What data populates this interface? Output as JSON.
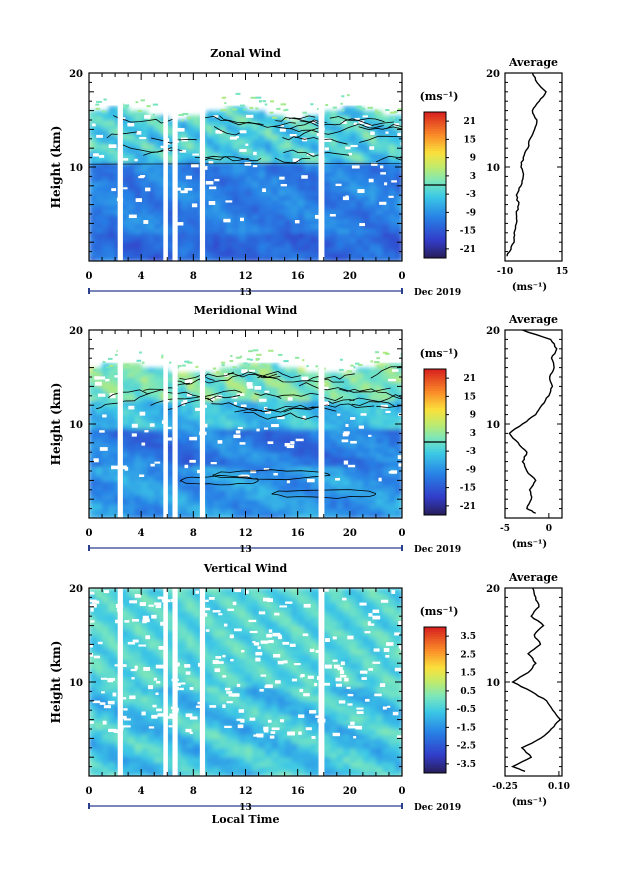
{
  "chart_data": [
    {
      "type": "heatmap",
      "title": "Zonal Wind",
      "ylabel": "Height (km)",
      "xlabel": "",
      "x_ticks": [
        "0",
        "4",
        "8",
        "12",
        "16",
        "20",
        "0"
      ],
      "date_axis": {
        "day": "13",
        "month_label": "Dec 2019"
      },
      "y_ticks": [
        "10",
        "20"
      ],
      "ylim": [
        0,
        20
      ],
      "xlim": [
        0,
        24
      ],
      "colorbar": {
        "unit": "(ms⁻¹)",
        "ticks": [
          "21",
          "15",
          "9",
          "3",
          "-3",
          "-9",
          "-15",
          "-21"
        ],
        "range": [
          -24,
          24
        ]
      },
      "profile": {
        "title": "Average",
        "xlabel": "(ms⁻¹)",
        "x_ticks": [
          "-10",
          "15"
        ],
        "y_ticks": [
          "10",
          "20"
        ],
        "xlim": [
          -10,
          15
        ],
        "heights": [
          0.5,
          1,
          2,
          3,
          4,
          5,
          6,
          7,
          8,
          9,
          10,
          11,
          12,
          13,
          14,
          15,
          16,
          17,
          18,
          19,
          20
        ],
        "values": [
          -9,
          -8,
          -6,
          -6,
          -5,
          -5,
          -4,
          -5,
          -3,
          -2,
          -3,
          -2,
          0,
          1,
          3,
          4,
          2,
          5,
          8,
          4,
          2
        ]
      }
    },
    {
      "type": "heatmap",
      "title": "Meridional Wind",
      "ylabel": "Height (km)",
      "xlabel": "",
      "x_ticks": [
        "0",
        "4",
        "8",
        "12",
        "16",
        "20",
        "0"
      ],
      "date_axis": {
        "day": "13",
        "month_label": "Dec 2019"
      },
      "y_ticks": [
        "10",
        "20"
      ],
      "ylim": [
        0,
        20
      ],
      "xlim": [
        0,
        24
      ],
      "colorbar": {
        "unit": "(ms⁻¹)",
        "ticks": [
          "21",
          "15",
          "9",
          "3",
          "-3",
          "-9",
          "-15",
          "-21"
        ],
        "range": [
          -24,
          24
        ]
      },
      "profile": {
        "title": "Average",
        "xlabel": "(ms⁻¹)",
        "x_ticks": [
          "-5",
          "0"
        ],
        "y_ticks": [
          "10",
          "20"
        ],
        "xlim": [
          -5,
          1.5
        ],
        "heights": [
          0.5,
          1,
          2,
          3,
          4,
          5,
          6,
          7,
          8,
          9,
          10,
          11,
          12,
          13,
          14,
          15,
          16,
          17,
          18,
          19,
          20
        ],
        "values": [
          -1.5,
          -2.5,
          -2,
          -2.2,
          -1.5,
          -2.5,
          -3,
          -2.5,
          -3.5,
          -4.5,
          -3,
          -1.5,
          -0.8,
          0,
          0.4,
          0.1,
          0.6,
          0.3,
          0.9,
          0.2,
          -3
        ]
      }
    },
    {
      "type": "heatmap",
      "title": "Vertical Wind",
      "ylabel": "Height (km)",
      "xlabel": "Local Time",
      "x_ticks": [
        "0",
        "4",
        "8",
        "12",
        "16",
        "20",
        "0"
      ],
      "date_axis": {
        "day": "13",
        "month_label": "Dec 2019"
      },
      "y_ticks": [
        "10",
        "20"
      ],
      "ylim": [
        0,
        20
      ],
      "xlim": [
        0,
        24
      ],
      "colorbar": {
        "unit": "(ms⁻¹)",
        "ticks": [
          "3.5",
          "2.5",
          "1.5",
          "0.5",
          "-0.5",
          "-1.5",
          "-2.5",
          "-3.5"
        ],
        "range": [
          -4,
          4
        ]
      },
      "profile": {
        "title": "Average",
        "xlabel": "(ms⁻¹)",
        "x_ticks": [
          "-0.25",
          "0.10"
        ],
        "y_ticks": [
          "10",
          "20"
        ],
        "xlim": [
          -0.25,
          0.12
        ],
        "heights": [
          0.5,
          1,
          2,
          3,
          4,
          5,
          6,
          7,
          8,
          9,
          10,
          11,
          12,
          13,
          14,
          15,
          16,
          17,
          18,
          19,
          20
        ],
        "values": [
          -0.12,
          -0.2,
          -0.08,
          -0.14,
          -0.02,
          0.05,
          0.11,
          0.06,
          0.02,
          -0.08,
          -0.2,
          -0.1,
          -0.05,
          -0.1,
          -0.02,
          -0.06,
          0.0,
          -0.08,
          -0.03,
          -0.05,
          -0.07
        ]
      }
    }
  ]
}
